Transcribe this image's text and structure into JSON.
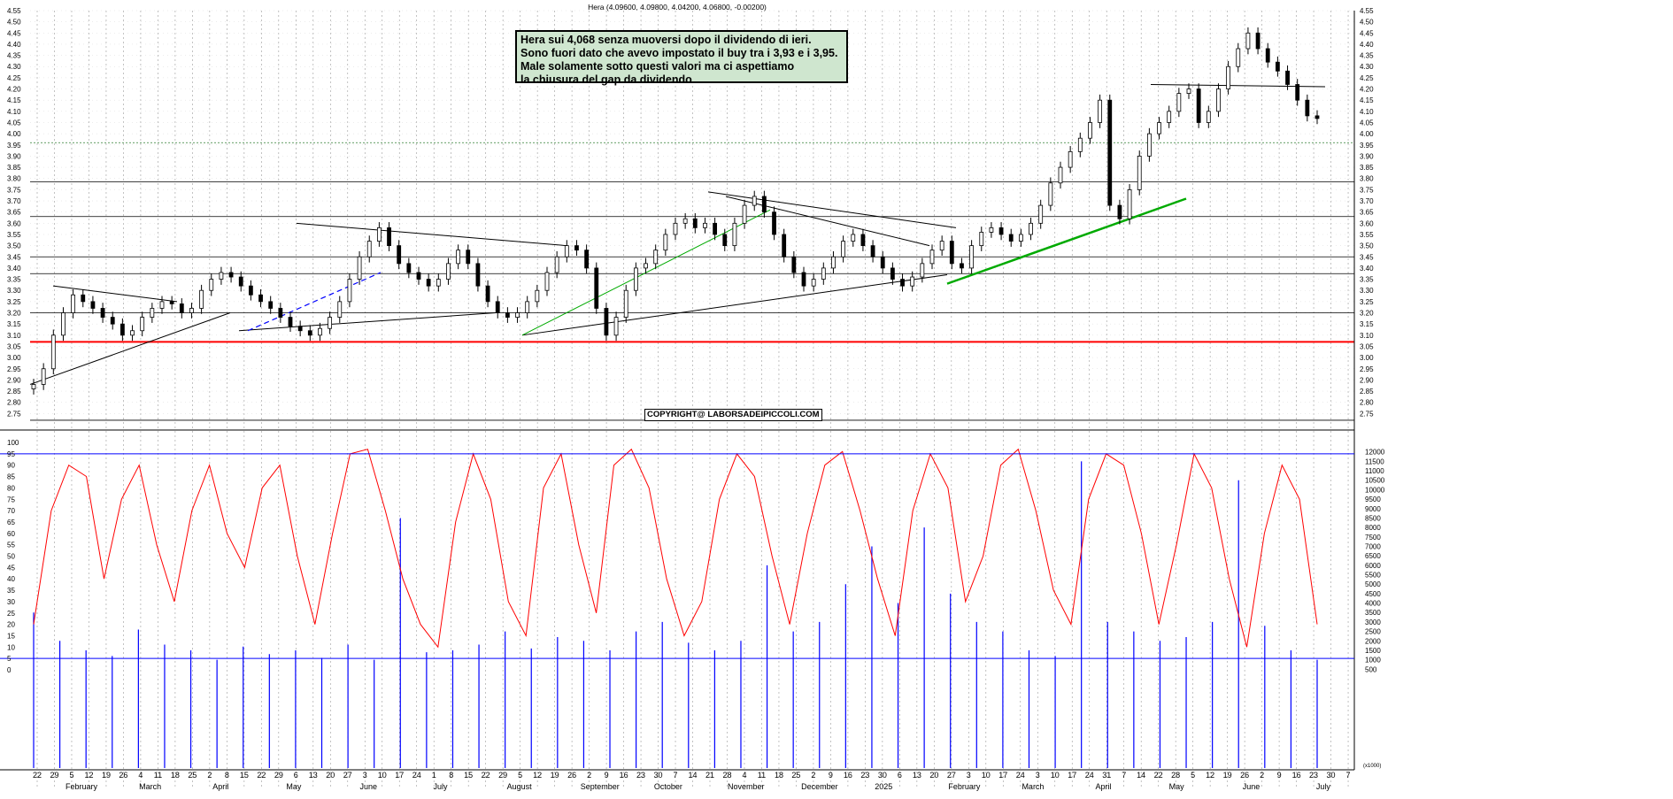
{
  "chart_data": [
    {
      "type": "line",
      "title": "Hera (4.09600, 4.09800, 4.04200, 4.06800, -0.00200)",
      "subtype": "candlestick price chart",
      "ylim": [
        2.7,
        4.55
      ],
      "y_ticks": [
        "4.55",
        "4.50",
        "4.45",
        "4.40",
        "4.35",
        "4.30",
        "4.25",
        "4.20",
        "4.15",
        "4.10",
        "4.05",
        "4.00",
        "3.95",
        "3.90",
        "3.85",
        "3.80",
        "3.75",
        "3.70",
        "3.65",
        "3.60",
        "3.55",
        "3.50",
        "3.45",
        "3.40",
        "3.35",
        "3.30",
        "3.25",
        "3.20",
        "3.15",
        "3.10",
        "3.05",
        "3.00",
        "2.95",
        "2.90",
        "2.85",
        "2.80",
        "2.75"
      ],
      "x_day_ticks": [
        "22",
        "29",
        "5",
        "12",
        "19",
        "26",
        "4",
        "11",
        "18",
        "25",
        "2",
        "8",
        "15",
        "22",
        "29",
        "6",
        "13",
        "20",
        "27",
        "3",
        "10",
        "17",
        "24",
        "1",
        "8",
        "15",
        "22",
        "29",
        "5",
        "12",
        "19",
        "26",
        "2",
        "9",
        "16",
        "23",
        "30",
        "7",
        "14",
        "21",
        "28",
        "4",
        "11",
        "18",
        "25",
        "2",
        "9",
        "16",
        "23",
        "30",
        "6",
        "13",
        "20",
        "27",
        "3",
        "10",
        "17",
        "24",
        "3",
        "10",
        "17",
        "24",
        "31",
        "7",
        "14",
        "22",
        "28",
        "5",
        "12",
        "19",
        "26",
        "2",
        "9",
        "16",
        "23",
        "30",
        "7"
      ],
      "x_month_labels": [
        "February",
        "March",
        "April",
        "May",
        "June",
        "July",
        "August",
        "September",
        "October",
        "November",
        "December",
        "2025",
        "February",
        "March",
        "April",
        "May",
        "June",
        "July"
      ],
      "series": [
        {
          "name": "Hera",
          "values": [
            2.88,
            2.95,
            3.1,
            3.2,
            3.28,
            3.25,
            3.22,
            3.18,
            3.15,
            3.1,
            3.12,
            3.18,
            3.22,
            3.25,
            3.24,
            3.2,
            3.22,
            3.3,
            3.35,
            3.38,
            3.36,
            3.32,
            3.28,
            3.25,
            3.22,
            3.18,
            3.14,
            3.12,
            3.1,
            3.13,
            3.18,
            3.25,
            3.35,
            3.45,
            3.52,
            3.58,
            3.5,
            3.42,
            3.38,
            3.35,
            3.32,
            3.35,
            3.42,
            3.48,
            3.42,
            3.32,
            3.25,
            3.2,
            3.18,
            3.2,
            3.25,
            3.3,
            3.38,
            3.45,
            3.5,
            3.48,
            3.4,
            3.22,
            3.1,
            3.18,
            3.3,
            3.4,
            3.42,
            3.48,
            3.55,
            3.6,
            3.62,
            3.58,
            3.6,
            3.55,
            3.5,
            3.6,
            3.68,
            3.72,
            3.65,
            3.55,
            3.45,
            3.38,
            3.32,
            3.35,
            3.4,
            3.45,
            3.52,
            3.55,
            3.5,
            3.45,
            3.4,
            3.35,
            3.32,
            3.36,
            3.42,
            3.48,
            3.52,
            3.42,
            3.4,
            3.5,
            3.56,
            3.58,
            3.55,
            3.52,
            3.55,
            3.6,
            3.68,
            3.78,
            3.85,
            3.92,
            3.98,
            4.05,
            4.15,
            3.68,
            3.62,
            3.75,
            3.9,
            4.0,
            4.05,
            4.1,
            4.18,
            4.2,
            4.05,
            4.1,
            4.2,
            4.3,
            4.38,
            4.45,
            4.38,
            4.32,
            4.28,
            4.22,
            4.15,
            4.08,
            4.068
          ]
        },
        {
          "name": "RSI",
          "values": [
            20,
            70,
            90,
            85,
            40,
            75,
            90,
            55,
            30,
            70,
            90,
            60,
            45,
            80,
            90,
            50,
            20,
            60,
            95,
            97,
            70,
            40,
            20,
            10,
            65,
            95,
            75,
            30,
            15,
            80,
            95,
            55,
            25,
            90,
            97,
            80,
            40,
            15,
            30,
            75,
            95,
            85,
            50,
            20,
            60,
            90,
            96,
            70,
            40,
            15,
            70,
            95,
            80,
            30,
            50,
            90,
            97,
            70,
            35,
            20,
            75,
            95,
            90,
            60,
            20,
            55,
            95,
            80,
            40,
            10,
            60,
            90,
            75,
            20
          ]
        },
        {
          "name": "Volume",
          "values": [
            3500,
            2000,
            1500,
            1200,
            2600,
            1800,
            1500,
            1000,
            1700,
            1300,
            1500,
            1100,
            1800,
            1000,
            8500,
            1400,
            1500,
            1800,
            2500,
            1600,
            2200,
            2000,
            1500,
            2500,
            3000,
            1900,
            1500,
            2000,
            6000,
            2500,
            3000,
            5000,
            7000,
            4000,
            8000,
            4500,
            3000,
            2500,
            1500,
            1200,
            11500,
            3000,
            2500,
            2000,
            2200,
            3000,
            10500,
            2800,
            1500,
            1000
          ]
        }
      ],
      "indicator_y_ticks": [
        "100",
        "95",
        "90",
        "85",
        "80",
        "75",
        "70",
        "65",
        "60",
        "55",
        "50",
        "45",
        "40",
        "35",
        "30",
        "25",
        "20",
        "15",
        "10",
        "5",
        "0"
      ],
      "volume_y_ticks": [
        "12000",
        "11500",
        "11000",
        "10500",
        "10000",
        "9500",
        "9000",
        "8500",
        "8000",
        "7500",
        "7000",
        "6500",
        "6000",
        "5500",
        "5000",
        "4500",
        "4000",
        "3500",
        "3000",
        "2500",
        "2000",
        "1500",
        "1000",
        "500"
      ],
      "volume_unit_label": "(x1000)",
      "horizontal_levels": [
        3.96,
        3.785,
        3.63,
        3.45,
        3.375,
        3.2,
        2.72
      ],
      "support_level_red": 3.07,
      "indicator_levels": [
        95,
        5
      ],
      "colors": {
        "up": "#000000",
        "down": "#000000",
        "rsi": "#ff0000",
        "volume": "#0000ff",
        "trend_green": "#00aa00",
        "trend_blue": "#0000ff",
        "support": "#ff0000",
        "grid": "#9a9a9a"
      },
      "annotations": [
        "Hera sui 4,068 senza muoversi dopo il dividendo di ieri.",
        "Sono fuori dato che avevo impostato il buy tra i 3,93 e i 3,95.",
        "Male solamente sotto questi valori ma ci aspettiamo",
        "la chiusura del gap da dividendo."
      ],
      "copyright": "COPYRIGHT@ LABORSADEIPICCOLI.COM",
      "grid": true
    }
  ]
}
